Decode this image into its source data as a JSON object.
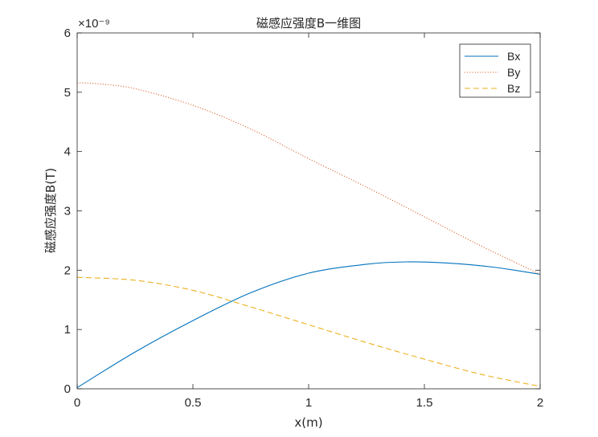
{
  "chart_data": {
    "type": "line",
    "title": "磁感应强度B一维图",
    "xlabel": "x(m)",
    "ylabel": "磁感应强度B(T)",
    "exponent_label": "×10⁻⁹",
    "xlim": [
      0,
      2
    ],
    "ylim": [
      0,
      6
    ],
    "xticks": [
      0,
      0.5,
      1,
      1.5,
      2
    ],
    "xtick_labels": [
      "0",
      "0.5",
      "1",
      "1.5",
      "2"
    ],
    "yticks": [
      0,
      1,
      2,
      3,
      4,
      5,
      6
    ],
    "ytick_labels": [
      "0",
      "1",
      "2",
      "3",
      "4",
      "5",
      "6"
    ],
    "grid": false,
    "legend_position": "top-right",
    "series": [
      {
        "name": "Bx",
        "style": "solid",
        "color": "#0072BD",
        "x": [
          0,
          0.25,
          0.5,
          0.75,
          1.0,
          1.25,
          1.42,
          1.6,
          1.8,
          2.0
        ],
        "y": [
          0.02,
          0.62,
          1.15,
          1.62,
          1.95,
          2.1,
          2.14,
          2.12,
          2.05,
          1.93
        ]
      },
      {
        "name": "By",
        "style": "dotted",
        "color": "#D95319",
        "x": [
          0,
          0.1,
          0.25,
          0.5,
          0.75,
          1.0,
          1.25,
          1.5,
          1.75,
          2.0
        ],
        "y": [
          5.16,
          5.14,
          5.06,
          4.78,
          4.38,
          3.88,
          3.4,
          2.9,
          2.4,
          1.93
        ]
      },
      {
        "name": "Bz",
        "style": "dashed",
        "color": "#EDB120",
        "x": [
          0,
          0.25,
          0.5,
          0.75,
          1.0,
          1.25,
          1.5,
          1.75,
          2.0
        ],
        "y": [
          1.88,
          1.83,
          1.66,
          1.38,
          1.08,
          0.78,
          0.5,
          0.24,
          0.04
        ]
      }
    ]
  }
}
